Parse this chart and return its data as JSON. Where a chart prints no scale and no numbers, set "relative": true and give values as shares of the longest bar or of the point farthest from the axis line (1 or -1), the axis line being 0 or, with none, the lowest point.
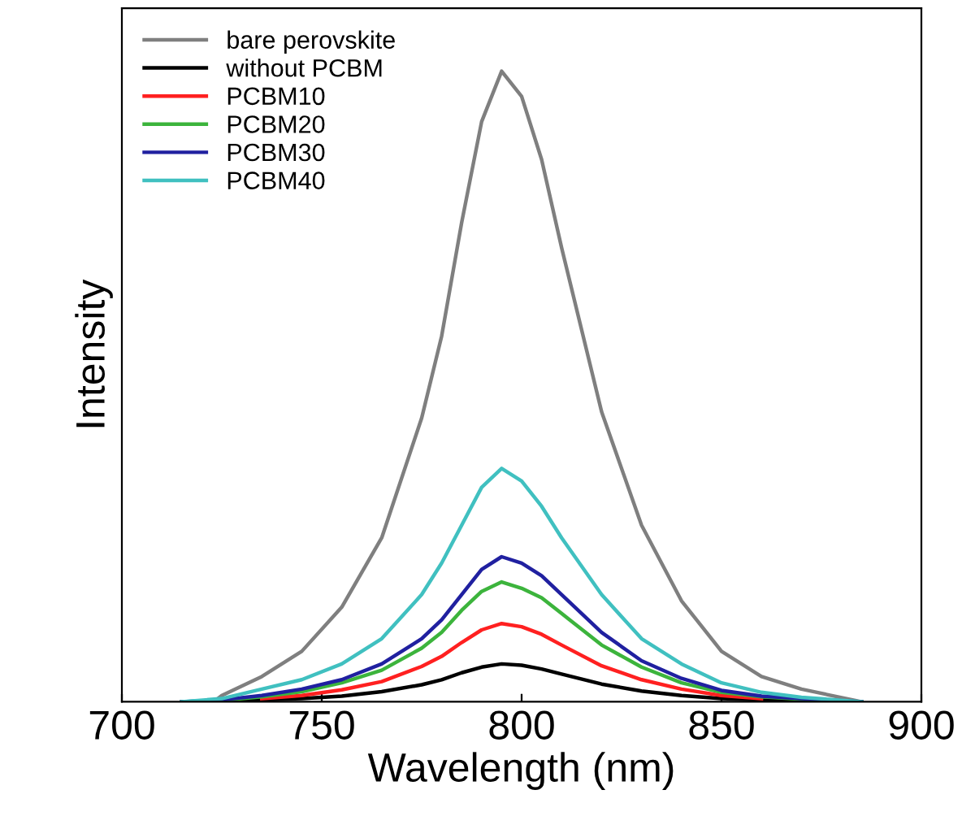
{
  "chart_data": {
    "type": "line",
    "xlabel": "Wavelength (nm)",
    "ylabel": "Intensity",
    "relative": true,
    "x": [
      715,
      725,
      735,
      745,
      755,
      765,
      775,
      780,
      785,
      790,
      795,
      800,
      805,
      810,
      820,
      830,
      840,
      850,
      860,
      870,
      885
    ],
    "xlim": [
      700,
      900
    ],
    "xticks": [
      700,
      750,
      800,
      850,
      900
    ],
    "tick_labels": "x",
    "legend": "top left",
    "grid": false,
    "series": [
      {
        "name": "bare perovskite",
        "color": "#7f7f7f",
        "x": [
          723,
          725,
          735,
          745,
          755,
          765,
          775,
          780,
          785,
          790,
          795,
          800,
          805,
          810,
          820,
          830,
          840,
          850,
          860,
          870,
          885
        ],
        "values": [
          0,
          0.01,
          0.04,
          0.08,
          0.15,
          0.26,
          0.45,
          0.58,
          0.76,
          0.92,
          1.0,
          0.96,
          0.86,
          0.72,
          0.46,
          0.28,
          0.16,
          0.08,
          0.04,
          0.02,
          0
        ]
      },
      {
        "name": "without PCBM",
        "color": "#000000",
        "values": [
          0,
          0.001,
          0.003,
          0.005,
          0.009,
          0.016,
          0.027,
          0.035,
          0.046,
          0.055,
          0.06,
          0.058,
          0.052,
          0.044,
          0.028,
          0.017,
          0.01,
          0.005,
          0.003,
          0.001,
          0
        ]
      },
      {
        "name": "PCBM10",
        "color": "#ff2020",
        "x": [
          735,
          745,
          755,
          765,
          775,
          780,
          785,
          790,
          795,
          800,
          805,
          810,
          820,
          830,
          840,
          850,
          860
        ],
        "values": [
          0.005,
          0.01,
          0.019,
          0.032,
          0.056,
          0.072,
          0.094,
          0.114,
          0.124,
          0.119,
          0.107,
          0.09,
          0.057,
          0.035,
          0.02,
          0.01,
          0.005
        ]
      },
      {
        "name": "PCBM20",
        "color": "#3cb43c",
        "values": [
          0,
          0.002,
          0.008,
          0.016,
          0.03,
          0.05,
          0.085,
          0.11,
          0.145,
          0.175,
          0.19,
          0.18,
          0.165,
          0.14,
          0.09,
          0.055,
          0.03,
          0.015,
          0.008,
          0.004,
          0
        ]
      },
      {
        "name": "PCBM30",
        "color": "#2020a0",
        "values": [
          0,
          0.003,
          0.01,
          0.02,
          0.035,
          0.06,
          0.1,
          0.13,
          0.17,
          0.21,
          0.23,
          0.22,
          0.2,
          0.17,
          0.11,
          0.065,
          0.037,
          0.018,
          0.009,
          0.005,
          0
        ]
      },
      {
        "name": "PCBM40",
        "color": "#40c0c0",
        "values": [
          0,
          0.005,
          0.02,
          0.035,
          0.06,
          0.1,
          0.17,
          0.22,
          0.28,
          0.34,
          0.37,
          0.35,
          0.31,
          0.26,
          0.17,
          0.1,
          0.06,
          0.03,
          0.015,
          0.007,
          0
        ]
      }
    ]
  }
}
